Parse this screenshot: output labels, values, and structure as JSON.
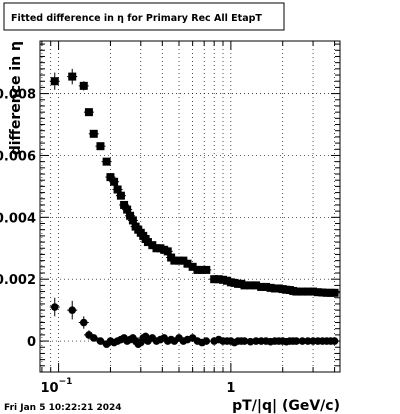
{
  "title": "Fitted difference in η for Primary Rec All EtapT",
  "timestamp": "Fri Jan  5 10:22:21 2024",
  "chart_data": {
    "type": "scatter",
    "xlabel": "pT/|q| (GeV/c)",
    "ylabel": "difference in η",
    "xscale": "log",
    "xlim": [
      0.078,
      4.3
    ],
    "ylim": [
      -0.001,
      0.0097
    ],
    "grid": true,
    "x_tick_labels": [
      {
        "x": 0.1,
        "base": "10",
        "exp": "−1"
      },
      {
        "x": 1,
        "base": "1",
        "exp": ""
      }
    ],
    "y_tick_labels": [
      {
        "y": 0.008,
        "label": "0.008"
      },
      {
        "y": 0.006,
        "label": "0.006"
      },
      {
        "y": 0.004,
        "label": "0.004"
      },
      {
        "y": 0.002,
        "label": "0.002"
      },
      {
        "y": 0,
        "label": "0"
      }
    ],
    "series": [
      {
        "marker": "square",
        "x": [
          0.095,
          0.12,
          0.14,
          0.15,
          0.16,
          0.175,
          0.19,
          0.2,
          0.21,
          0.22,
          0.23,
          0.24,
          0.25,
          0.26,
          0.27,
          0.28,
          0.29,
          0.3,
          0.31,
          0.32,
          0.33,
          0.35,
          0.37,
          0.39,
          0.41,
          0.43,
          0.45,
          0.47,
          0.5,
          0.53,
          0.56,
          0.6,
          0.64,
          0.68,
          0.72,
          0.8,
          0.85,
          0.9,
          0.95,
          1.0,
          1.05,
          1.1,
          1.15,
          1.2,
          1.3,
          1.4,
          1.5,
          1.6,
          1.7,
          1.8,
          1.9,
          2.0,
          2.1,
          2.2,
          2.3,
          2.4,
          2.6,
          2.8,
          3.0,
          3.2,
          3.4,
          3.6,
          3.8,
          4.0
        ],
        "y": [
          0.0084,
          0.00855,
          0.00825,
          0.0074,
          0.0067,
          0.0063,
          0.0058,
          0.0053,
          0.00515,
          0.0049,
          0.0047,
          0.0044,
          0.00425,
          0.00405,
          0.0039,
          0.0037,
          0.0036,
          0.0035,
          0.0034,
          0.0033,
          0.0032,
          0.0031,
          0.003,
          0.003,
          0.00295,
          0.0029,
          0.0027,
          0.0026,
          0.0026,
          0.0026,
          0.0025,
          0.0024,
          0.0023,
          0.0023,
          0.0023,
          0.002,
          0.002,
          0.00198,
          0.00195,
          0.0019,
          0.00188,
          0.00185,
          0.00185,
          0.0018,
          0.0018,
          0.0018,
          0.00175,
          0.00175,
          0.00172,
          0.0017,
          0.0017,
          0.00168,
          0.00166,
          0.00165,
          0.00162,
          0.0016,
          0.0016,
          0.0016,
          0.0016,
          0.00158,
          0.00157,
          0.00156,
          0.00156,
          0.00156
        ],
        "yerr": [
          0.00028,
          0.00025,
          0.00015,
          0.0001,
          0.0001,
          0.0001,
          0.0001,
          0.0001,
          8e-05,
          8e-05,
          8e-05,
          8e-05,
          8e-05,
          8e-05,
          8e-05,
          8e-05,
          8e-05,
          8e-05,
          8e-05,
          8e-05,
          8e-05,
          8e-05,
          8e-05,
          8e-05,
          8e-05,
          8e-05,
          8e-05,
          8e-05,
          8e-05,
          8e-05,
          8e-05,
          8e-05,
          8e-05,
          8e-05,
          8e-05,
          8e-05,
          8e-05,
          8e-05,
          8e-05,
          8e-05,
          8e-05,
          8e-05,
          8e-05,
          8e-05,
          8e-05,
          8e-05,
          8e-05,
          8e-05,
          8e-05,
          8e-05,
          8e-05,
          8e-05,
          8e-05,
          8e-05,
          8e-05,
          8e-05,
          8e-05,
          8e-05,
          8e-05,
          8e-05,
          8e-05,
          8e-05,
          8e-05,
          8e-05
        ]
      },
      {
        "marker": "circle",
        "x": [
          0.095,
          0.12,
          0.14,
          0.15,
          0.16,
          0.175,
          0.19,
          0.2,
          0.21,
          0.22,
          0.23,
          0.24,
          0.25,
          0.26,
          0.27,
          0.28,
          0.29,
          0.3,
          0.31,
          0.32,
          0.33,
          0.35,
          0.37,
          0.39,
          0.41,
          0.43,
          0.45,
          0.47,
          0.5,
          0.53,
          0.56,
          0.6,
          0.64,
          0.68,
          0.72,
          0.8,
          0.85,
          0.9,
          0.95,
          1.0,
          1.05,
          1.1,
          1.15,
          1.2,
          1.3,
          1.4,
          1.5,
          1.6,
          1.7,
          1.8,
          1.9,
          2.0,
          2.1,
          2.2,
          2.3,
          2.4,
          2.6,
          2.8,
          3.0,
          3.2,
          3.4,
          3.6,
          3.8,
          4.0
        ],
        "y": [
          0.0011,
          0.001,
          0.0006,
          0.0002,
          0.0001,
          0.0,
          -0.0001,
          0.0,
          -5e-05,
          0.0,
          5e-05,
          0.0001,
          0.0,
          5e-05,
          0.0001,
          0.0,
          -0.0001,
          -5e-05,
          0.0001,
          0.00015,
          0.0,
          0.0001,
          0.0,
          5e-05,
          0.0001,
          0.0,
          5e-05,
          0.0,
          0.0001,
          0.0,
          5e-05,
          0.0001,
          0.0,
          -5e-05,
          0.0,
          0.0,
          5e-05,
          0.0,
          0.0,
          0.0,
          -5e-05,
          0.0,
          0.0,
          0.0,
          -2e-05,
          0.0,
          0.0,
          0.0,
          -2e-05,
          0.0,
          0.0,
          0.0,
          -2e-05,
          0.0,
          0.0,
          0.0,
          0.0,
          0.0,
          0.0,
          0.0,
          0.0,
          0.0,
          0.0,
          0.0
        ],
        "yerr": [
          0.0003,
          0.0003,
          0.0002,
          0.00015,
          0.0001,
          0.0001,
          0.0001,
          0.0001,
          0.0001,
          0.0001,
          0.0001,
          0.0001,
          0.0001,
          0.0001,
          0.0001,
          0.0001,
          0.0001,
          0.0001,
          0.0001,
          0.0001,
          0.0001,
          0.0001,
          0.0001,
          0.0001,
          0.0001,
          0.0001,
          0.0001,
          0.0001,
          0.0001,
          0.0001,
          0.0001,
          0.0001,
          0.0001,
          0.0001,
          0.0001,
          8e-05,
          8e-05,
          8e-05,
          8e-05,
          8e-05,
          8e-05,
          8e-05,
          8e-05,
          8e-05,
          8e-05,
          8e-05,
          8e-05,
          8e-05,
          8e-05,
          8e-05,
          8e-05,
          8e-05,
          8e-05,
          8e-05,
          8e-05,
          8e-05,
          8e-05,
          8e-05,
          8e-05,
          8e-05,
          8e-05,
          8e-05,
          8e-05,
          8e-05
        ]
      }
    ]
  }
}
